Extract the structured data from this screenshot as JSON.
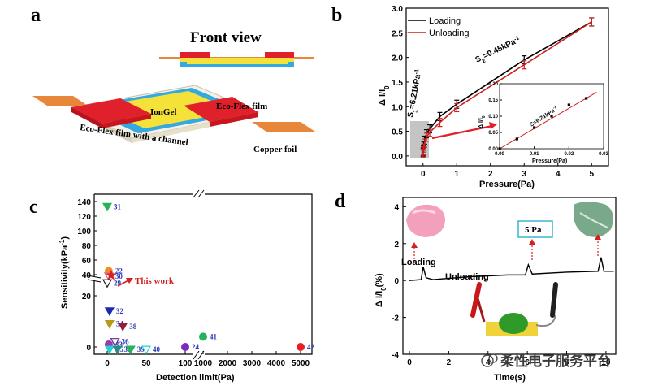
{
  "panels": {
    "a": {
      "letter": "a",
      "front_view_title": "Front view",
      "labels": {
        "ecoflex_film": "Eco-Flex film",
        "iongel": "IonGel",
        "ecoflex_channel": "Eco-Flex film with a channel",
        "copper_foil": "Copper foil"
      }
    },
    "b": {
      "letter": "b",
      "ylabel": "Δ I/I",
      "ylabel_sub": "0",
      "xlabel": "Pressure(Pa)",
      "legend": [
        "Loading",
        "Unloading"
      ],
      "s1_main": "S",
      "s1_sub": "1",
      "s1_rest": "=6.21kPa",
      "s1_sup": "-1",
      "s2_main": "S",
      "s2_sub": "2",
      "s2_rest": "=0.45kPa",
      "s2_sup": "-1",
      "inset_ylabel": "Δ I/I",
      "inset_ylabel_sub": "0",
      "inset_xlabel": "Pressure(Pa)",
      "inset_slope": "S=6.21kPa",
      "inset_slope_sup": "-1",
      "xticks": [
        "0",
        "1",
        "2",
        "3",
        "4",
        "5"
      ],
      "yticks": [
        "0.0",
        "0.5",
        "1.0",
        "1.5",
        "2.0",
        "2.5",
        "3.0"
      ],
      "inset_xticks": [
        "0.00",
        "0.01",
        "0.02",
        "0.03"
      ],
      "inset_yticks": [
        "0.00",
        "0.05",
        "0.10",
        "0.15",
        "0.20"
      ]
    },
    "c": {
      "letter": "c",
      "ylabel": "Sensitivity(kPa",
      "ylabel_sup": "-1",
      "ylabel_end": ")",
      "xlabel": "Detection limit(Pa)",
      "this_work": "This work",
      "yticks_low": [
        "0",
        "20"
      ],
      "yticks_high": [
        "40",
        "60",
        "80",
        "100",
        "120",
        "140"
      ],
      "xticks": [
        "0",
        "50",
        "100",
        "1000",
        "2000",
        "3000",
        "4000",
        "5000"
      ],
      "refs": [
        "31",
        "22",
        "30",
        "29",
        "32",
        "34",
        "38",
        "33",
        "36",
        "35",
        "37",
        "39",
        "40",
        "24",
        "41",
        "42"
      ]
    },
    "d": {
      "letter": "d",
      "ylabel": "Δ I/I",
      "ylabel_sub": "0",
      "ylabel_unit": "(%)",
      "xlabel": "Time(s)",
      "loading": "Loading",
      "unloading": "Unloading",
      "box_label": "5 Pa",
      "yticks": [
        "-4",
        "-2",
        "0",
        "2",
        "4"
      ],
      "xticks": [
        "0",
        "2",
        "4",
        "6",
        "8",
        "10"
      ]
    }
  },
  "watermark": "柔性电子服务平台",
  "chart_data": [
    {
      "type": "line",
      "panel": "b",
      "xlabel": "Pressure(Pa)",
      "ylabel": "Δ I/I0",
      "xlim": [
        -0.5,
        5.5
      ],
      "ylim": [
        -0.2,
        3.0
      ],
      "series": [
        {
          "name": "Loading",
          "color": "#000000",
          "x": [
            0,
            0.01,
            0.02,
            0.05,
            0.1,
            0.2,
            0.5,
            1,
            3,
            5
          ],
          "y": [
            0.08,
            0.12,
            0.2,
            0.32,
            0.45,
            0.55,
            0.8,
            1.05,
            1.95,
            2.72
          ]
        },
        {
          "name": "Unloading",
          "color": "#cc1f1f",
          "x": [
            0,
            0.01,
            0.02,
            0.05,
            0.1,
            0.2,
            0.5,
            1,
            3,
            5
          ],
          "y": [
            0.06,
            0.1,
            0.16,
            0.26,
            0.38,
            0.48,
            0.68,
            0.98,
            1.85,
            2.72
          ]
        }
      ],
      "annotations": [
        "S1=6.21kPa-1",
        "S2=0.45kPa-1"
      ],
      "inset": {
        "xlabel": "Pressure(Pa)",
        "ylabel": "Δ I/I0",
        "x": [
          0.0,
          0.005,
          0.01,
          0.015,
          0.02,
          0.025
        ],
        "y": [
          0.0,
          0.03,
          0.065,
          0.1,
          0.135,
          0.155
        ],
        "fit_label": "S=6.21kPa-1",
        "xlim": [
          0,
          0.03
        ],
        "ylim": [
          0,
          0.2
        ]
      }
    },
    {
      "type": "scatter",
      "panel": "c",
      "xlabel": "Detection limit(Pa)",
      "ylabel": "Sensitivity(kPa-1)",
      "points": [
        {
          "ref": "31",
          "x": 0,
          "y": 133,
          "color": "#27b35a",
          "marker": "triangle-down"
        },
        {
          "ref": "22",
          "x": 2,
          "y": 45,
          "color": "#f08a2a",
          "marker": "circle"
        },
        {
          "ref": "30",
          "x": 2,
          "y": 38,
          "color": "#e06a8a",
          "marker": "triangle-down-open"
        },
        {
          "ref": "This work",
          "x": 5,
          "y": 28,
          "color": "#d62020",
          "marker": "star"
        },
        {
          "ref": "29",
          "x": 0,
          "y": 25,
          "color": "#1e1e1e",
          "marker": "triangle-down-open"
        },
        {
          "ref": "32",
          "x": 3,
          "y": 14,
          "color": "#1a2bb0",
          "marker": "triangle-down"
        },
        {
          "ref": "34",
          "x": 3,
          "y": 9,
          "color": "#b89a1a",
          "marker": "triangle-down"
        },
        {
          "ref": "38",
          "x": 20,
          "y": 8,
          "color": "#9a1a3a",
          "marker": "triangle-down"
        },
        {
          "ref": "33",
          "x": 2,
          "y": 1,
          "color": "#9a3ab0",
          "marker": "circle"
        },
        {
          "ref": "36",
          "x": 10,
          "y": 2,
          "color": "#5a2a8a",
          "marker": "triangle-down-open"
        },
        {
          "ref": "35",
          "x": 3,
          "y": -1,
          "color": "#2ad0d0",
          "marker": "triangle-down"
        },
        {
          "ref": "37",
          "x": 13,
          "y": -1,
          "color": "#2a8a8a",
          "marker": "triangle-down"
        },
        {
          "ref": "39",
          "x": 30,
          "y": -1,
          "color": "#27b35a",
          "marker": "triangle-down"
        },
        {
          "ref": "40",
          "x": 50,
          "y": -1,
          "color": "#2ad0d0",
          "marker": "triangle-down-open"
        },
        {
          "ref": "24",
          "x": 100,
          "y": 0,
          "color": "#7a2ac0",
          "marker": "circle"
        },
        {
          "ref": "41",
          "x": 1000,
          "y": 4,
          "color": "#27b35a",
          "marker": "circle"
        },
        {
          "ref": "42",
          "x": 5000,
          "y": 0,
          "color": "#e82020",
          "marker": "circle"
        }
      ]
    },
    {
      "type": "line",
      "panel": "d",
      "xlabel": "Time(s)",
      "ylabel": "Δ I/I0(%)",
      "xlim": [
        0,
        10.5
      ],
      "ylim": [
        -4,
        4.5
      ],
      "series": [
        {
          "color": "#000000",
          "x": [
            0,
            0.6,
            0.7,
            0.85,
            1.2,
            3,
            5,
            5.9,
            6.05,
            6.25,
            8,
            9.6,
            9.75,
            9.9,
            10.4
          ],
          "y": [
            0,
            0.05,
            0.75,
            0.15,
            0.05,
            0.2,
            0.3,
            0.3,
            0.85,
            0.35,
            0.45,
            0.5,
            1.25,
            0.5,
            0.5
          ]
        }
      ],
      "annotations": [
        "Loading",
        "Unloading",
        "5 Pa"
      ]
    }
  ]
}
